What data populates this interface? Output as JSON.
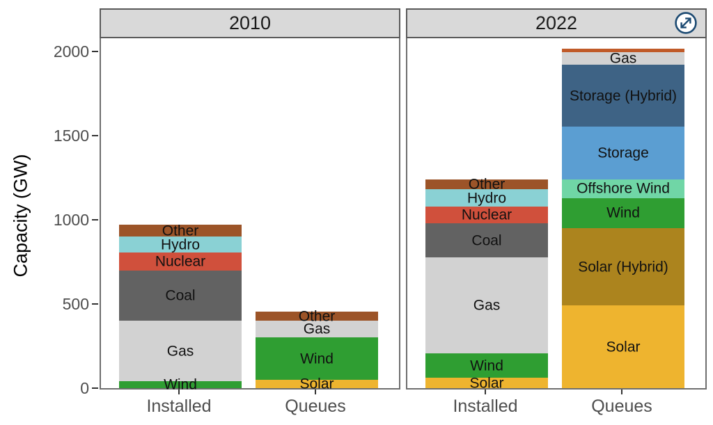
{
  "app": {
    "expand_button_label": "expand chart"
  },
  "style": {
    "strip_background": "#d9d9d9",
    "strip_border": "#595959",
    "panel_border": "#6e6e6e",
    "axis_text_color": "#4d4d4d",
    "segment_label_color": "#111111",
    "icon_color": "#1c4a72"
  },
  "chart_data": {
    "type": "bar",
    "stacked": true,
    "grid": false,
    "legend": "none (labels inside segments)",
    "ylabel": "Capacity (GW)",
    "yticks": [
      0,
      500,
      1000,
      1500,
      2000
    ],
    "ylim": [
      0,
      2080
    ],
    "x_categories": [
      "Installed",
      "Queues"
    ],
    "units": "GW",
    "palette": {
      "Solar": "#eeb42f",
      "Solar (Hybrid)": "#ac841e",
      "Wind": "#2f9e32",
      "Offshore Wind": "#70d6a6",
      "Storage": "#5b9ed2",
      "Storage (Hybrid)": "#3e6385",
      "Gas": "#d2d2d2",
      "Coal": "#626262",
      "Nuclear": "#d0503c",
      "Hydro": "#8ad1d4",
      "Other": "#9c5428"
    },
    "segment_order_note": "segments listed bottom to top",
    "facets": [
      {
        "title": "2010",
        "bars": [
          {
            "category": "Installed",
            "total_gw": 970,
            "segments": [
              {
                "name": "Wind",
                "value": 40,
                "labeled": true
              },
              {
                "name": "Gas",
                "value": 360,
                "labeled": true
              },
              {
                "name": "Coal",
                "value": 300,
                "labeled": true
              },
              {
                "name": "Nuclear",
                "value": 105,
                "labeled": true
              },
              {
                "name": "Hydro",
                "value": 95,
                "labeled": true
              },
              {
                "name": "Other",
                "value": 70,
                "labeled": true
              }
            ]
          },
          {
            "category": "Queues",
            "total_gw": 455,
            "segments": [
              {
                "name": "Solar",
                "value": 50,
                "labeled": true
              },
              {
                "name": "Wind",
                "value": 250,
                "labeled": true
              },
              {
                "name": "Gas",
                "value": 100,
                "labeled": true
              },
              {
                "name": "Other",
                "value": 55,
                "labeled": true
              }
            ]
          }
        ]
      },
      {
        "title": "2022",
        "bars": [
          {
            "category": "Installed",
            "total_gw": 1240,
            "segments": [
              {
                "name": "Solar",
                "value": 60,
                "labeled": true
              },
              {
                "name": "Wind",
                "value": 145,
                "labeled": true
              },
              {
                "name": "Gas",
                "value": 570,
                "labeled": true
              },
              {
                "name": "Coal",
                "value": 205,
                "labeled": true
              },
              {
                "name": "Nuclear",
                "value": 100,
                "labeled": true
              },
              {
                "name": "Hydro",
                "value": 100,
                "labeled": true
              },
              {
                "name": "Other",
                "value": 60,
                "labeled": true
              }
            ]
          },
          {
            "category": "Queues",
            "total_gw": 2015,
            "segments": [
              {
                "name": "Solar",
                "value": 490,
                "labeled": true
              },
              {
                "name": "Solar (Hybrid)",
                "value": 460,
                "labeled": true
              },
              {
                "name": "Wind",
                "value": 180,
                "labeled": true
              },
              {
                "name": "Offshore Wind",
                "value": 110,
                "labeled": true
              },
              {
                "name": "Storage",
                "value": 315,
                "labeled": true
              },
              {
                "name": "Storage (Hybrid)",
                "value": 365,
                "labeled": true
              },
              {
                "name": "Gas",
                "value": 75,
                "labeled": true
              },
              {
                "name": "Other",
                "value": 20,
                "labeled": false,
                "color": "#c05a28"
              }
            ]
          }
        ]
      }
    ]
  }
}
